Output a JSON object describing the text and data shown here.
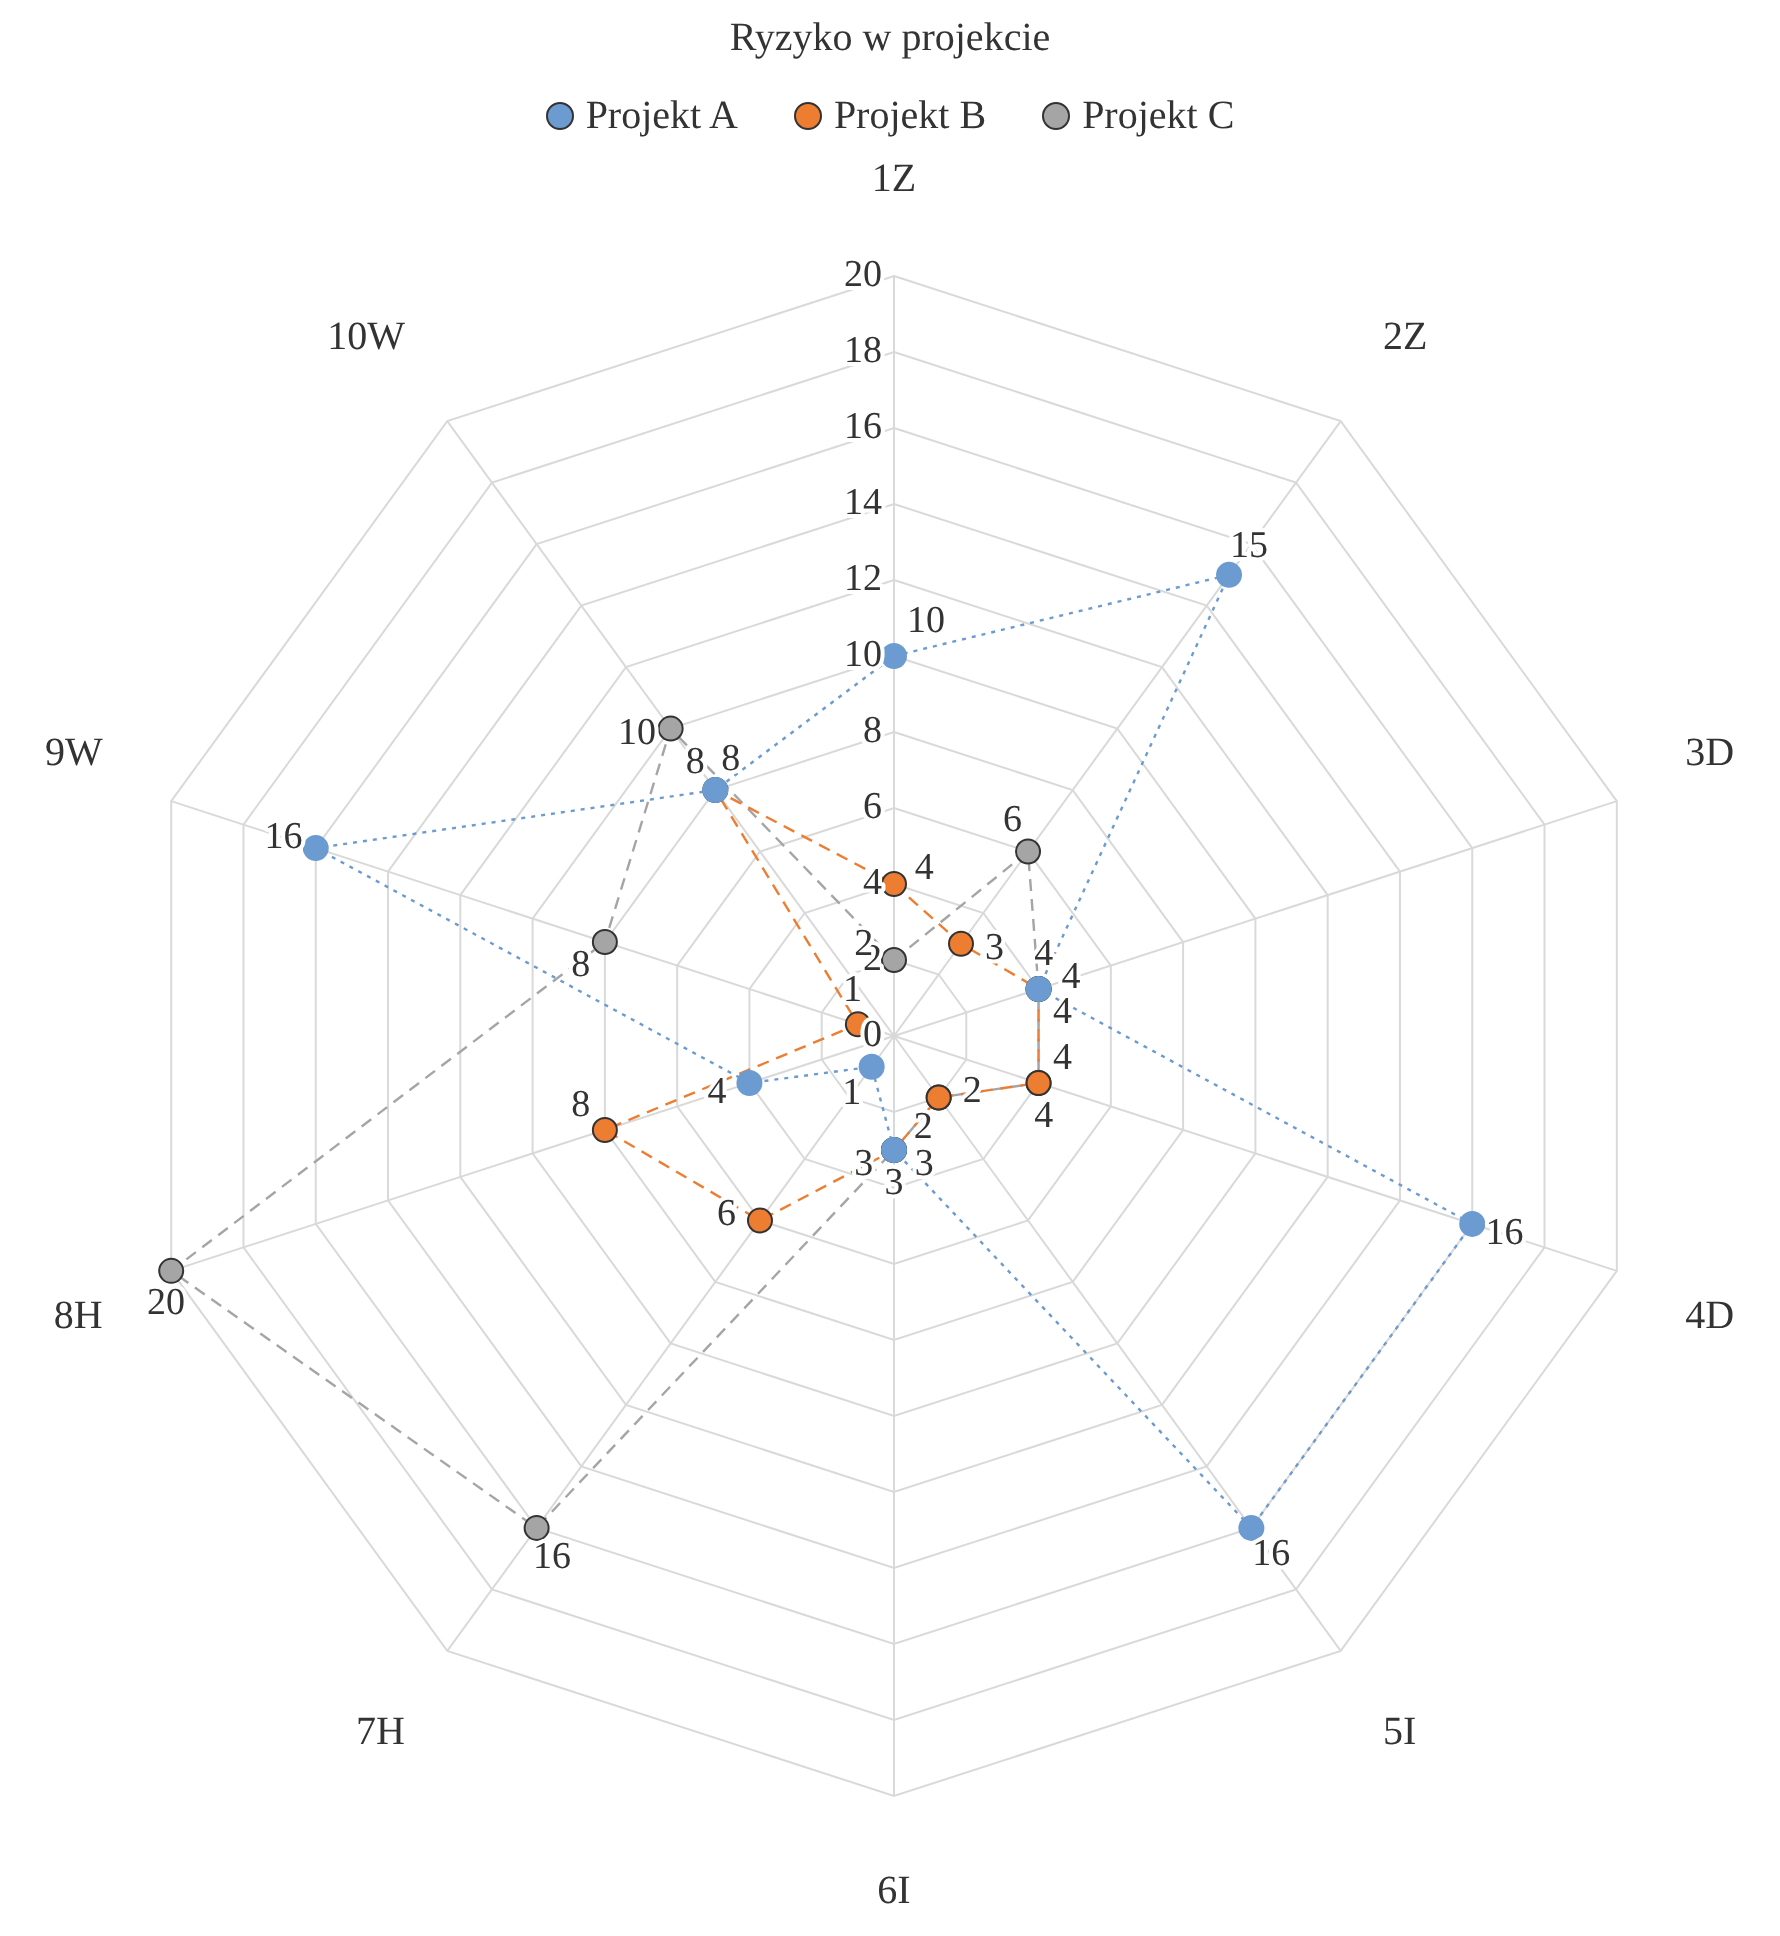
{
  "chart_data": {
    "type": "radar",
    "title": "Ryzyko w projekcie",
    "categories": [
      "1Z",
      "2Z",
      "3D",
      "4D",
      "5I",
      "6I",
      "7H",
      "8H",
      "9W",
      "10W"
    ],
    "series": [
      {
        "name": "Projekt A",
        "color": "#6b9bd1",
        "values": [
          10,
          15,
          4,
          16,
          16,
          3,
          1,
          4,
          16,
          8
        ],
        "line_style": "dotted"
      },
      {
        "name": "Projekt B",
        "color": "#ed7d31",
        "values": [
          4,
          3,
          4,
          4,
          2,
          3,
          6,
          8,
          1,
          8
        ],
        "line_style": "dashed"
      },
      {
        "name": "Projekt C",
        "color": "#a5a5a5",
        "values": [
          2,
          6,
          4,
          4,
          2,
          3,
          16,
          20,
          8,
          10
        ],
        "line_style": "dashed"
      }
    ],
    "ylim": [
      0,
      20
    ],
    "yticks": [
      0,
      2,
      4,
      6,
      8,
      10,
      12,
      14,
      16,
      18,
      20
    ],
    "grid": true,
    "legend": "top",
    "marker": "circle",
    "data_labels": true
  }
}
